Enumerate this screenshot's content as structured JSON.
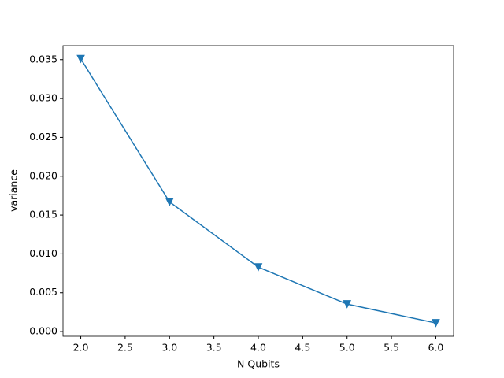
{
  "chart_data": {
    "type": "line",
    "x": [
      2,
      3,
      4,
      5,
      6
    ],
    "values": [
      0.0351,
      0.01669,
      0.0083,
      0.00354,
      0.00111
    ],
    "color": "#1f77b4",
    "marker": "triangle-down",
    "x_label": "N Qubits",
    "y_label": "variance",
    "xlim": [
      1.8,
      6.2
    ],
    "ylim": [
      -0.0006,
      0.0368
    ],
    "xticks": [
      {
        "value": 2,
        "label": "2.0"
      },
      {
        "value": 2.5,
        "label": "2.5"
      },
      {
        "value": 3,
        "label": "3.0"
      },
      {
        "value": 3.5,
        "label": "3.5"
      },
      {
        "value": 4,
        "label": "4.0"
      },
      {
        "value": 4.5,
        "label": "4.5"
      },
      {
        "value": 5,
        "label": "5.0"
      },
      {
        "value": 5.5,
        "label": "5.5"
      },
      {
        "value": 6,
        "label": "6.0"
      }
    ],
    "yticks": [
      {
        "value": 0,
        "label": "0.000"
      },
      {
        "value": 0.005,
        "label": "0.005"
      },
      {
        "value": 0.01,
        "label": "0.010"
      },
      {
        "value": 0.015,
        "label": "0.015"
      },
      {
        "value": 0.02,
        "label": "0.020"
      },
      {
        "value": 0.025,
        "label": "0.025"
      },
      {
        "value": 0.03,
        "label": "0.030"
      },
      {
        "value": 0.035,
        "label": "0.035"
      }
    ],
    "grid": false
  }
}
